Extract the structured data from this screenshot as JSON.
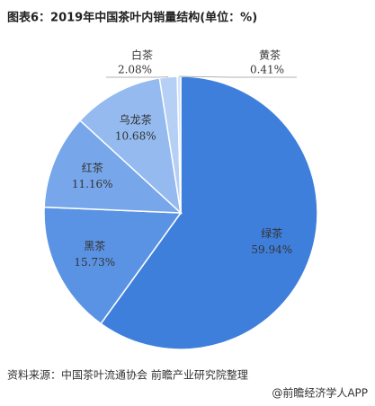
{
  "chart_data": {
    "type": "pie",
    "title": "图表6：2019年中国茶叶内销量结构(单位：%)",
    "categories": [
      "绿茶",
      "黑茶",
      "红茶",
      "乌龙茶",
      "白茶",
      "黄茶"
    ],
    "values": [
      59.94,
      15.73,
      11.16,
      10.68,
      2.08,
      0.41
    ],
    "value_labels": [
      "59.94%",
      "15.73%",
      "11.16%",
      "10.68%",
      "2.08%",
      "0.41%"
    ],
    "colors": [
      "#3f7fdc",
      "#5b93e4",
      "#77a7ea",
      "#94baef",
      "#b5cff5",
      "#d2e2f8"
    ],
    "source": "资料来源：中国茶叶流通协会 前瞻产业研究院整理",
    "footer": "@前瞻经济学人APP"
  }
}
